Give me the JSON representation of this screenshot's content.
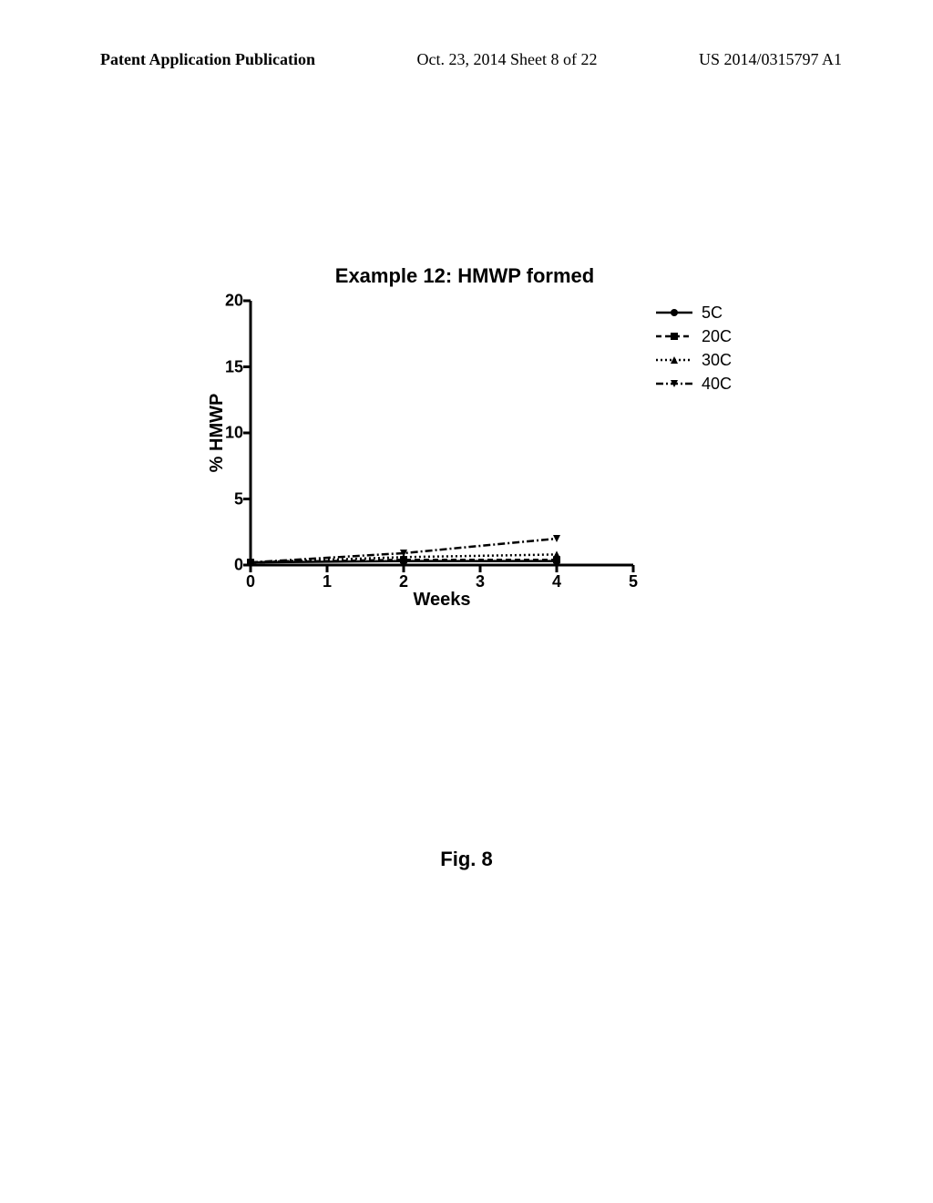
{
  "header": {
    "left": "Patent Application Publication",
    "center": "Oct. 23, 2014  Sheet 8 of 22",
    "right": "US 2014/0315797 A1"
  },
  "chart": {
    "type": "line",
    "title": "Example 12: HMWP formed",
    "title_fontsize": 22,
    "xlabel": "Weeks",
    "ylabel": "% HMWP",
    "label_fontsize": 20,
    "xlim": [
      0,
      5
    ],
    "ylim": [
      0,
      20
    ],
    "xtick_step": 1,
    "ytick_step": 5,
    "background_color": "#ffffff",
    "axis_color": "#000000",
    "axis_width": 3,
    "tick_length": 8,
    "tick_fontsize": 18,
    "series": [
      {
        "label": "5C",
        "marker": "circle",
        "dash": "solid",
        "color": "#000000",
        "x": [
          0,
          2,
          4
        ],
        "y": [
          0.2,
          0.3,
          0.3
        ]
      },
      {
        "label": "20C",
        "marker": "square",
        "dash": "6,4",
        "color": "#000000",
        "x": [
          0,
          2,
          4
        ],
        "y": [
          0.2,
          0.4,
          0.4
        ]
      },
      {
        "label": "30C",
        "marker": "triangle-up",
        "dash": "2,3",
        "color": "#000000",
        "x": [
          0,
          2,
          4
        ],
        "y": [
          0.2,
          0.6,
          0.8
        ]
      },
      {
        "label": "40C",
        "marker": "triangle-down",
        "dash": "8,3,2,3",
        "color": "#000000",
        "x": [
          0,
          2,
          4
        ],
        "y": [
          0.2,
          0.9,
          2.0
        ]
      }
    ]
  },
  "figure_label": "Fig. 8"
}
